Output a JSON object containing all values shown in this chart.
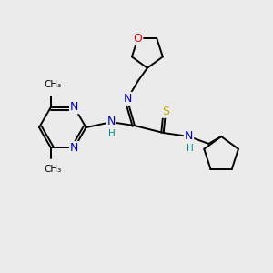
{
  "background_color": "#ebebeb",
  "atom_colors": {
    "C": "#000000",
    "N": "#0000cc",
    "O": "#ff0000",
    "S": "#bbaa00",
    "H": "#008888"
  },
  "figsize": [
    3.0,
    3.0
  ],
  "dpi": 100,
  "lw": 1.4
}
